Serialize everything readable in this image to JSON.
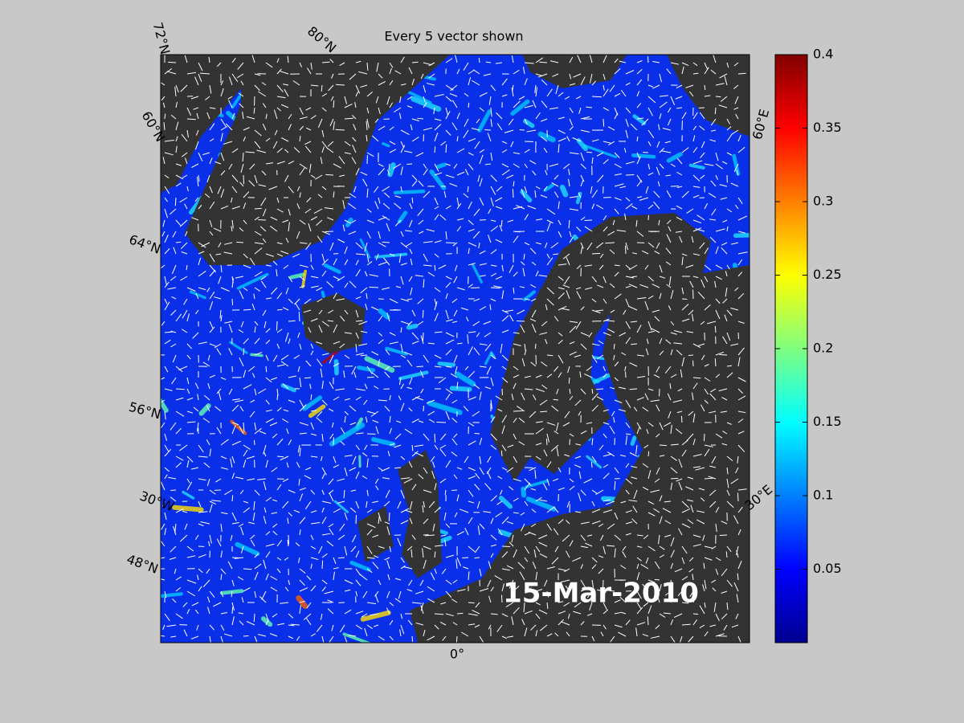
{
  "title": "Every 5 vector shown",
  "date_label": "15-Mar-2010",
  "map_labels": [
    "72°N",
    "80°N",
    "60°N",
    "64°N",
    "56°N",
    "30°W",
    "48°N",
    "0°",
    "30°E",
    "60°E"
  ],
  "colorbar": {
    "lim": [
      0,
      0.4
    ],
    "ticks": [
      0.05,
      0.1,
      0.15,
      0.2,
      0.25,
      0.3,
      0.35,
      0.4
    ]
  }
}
